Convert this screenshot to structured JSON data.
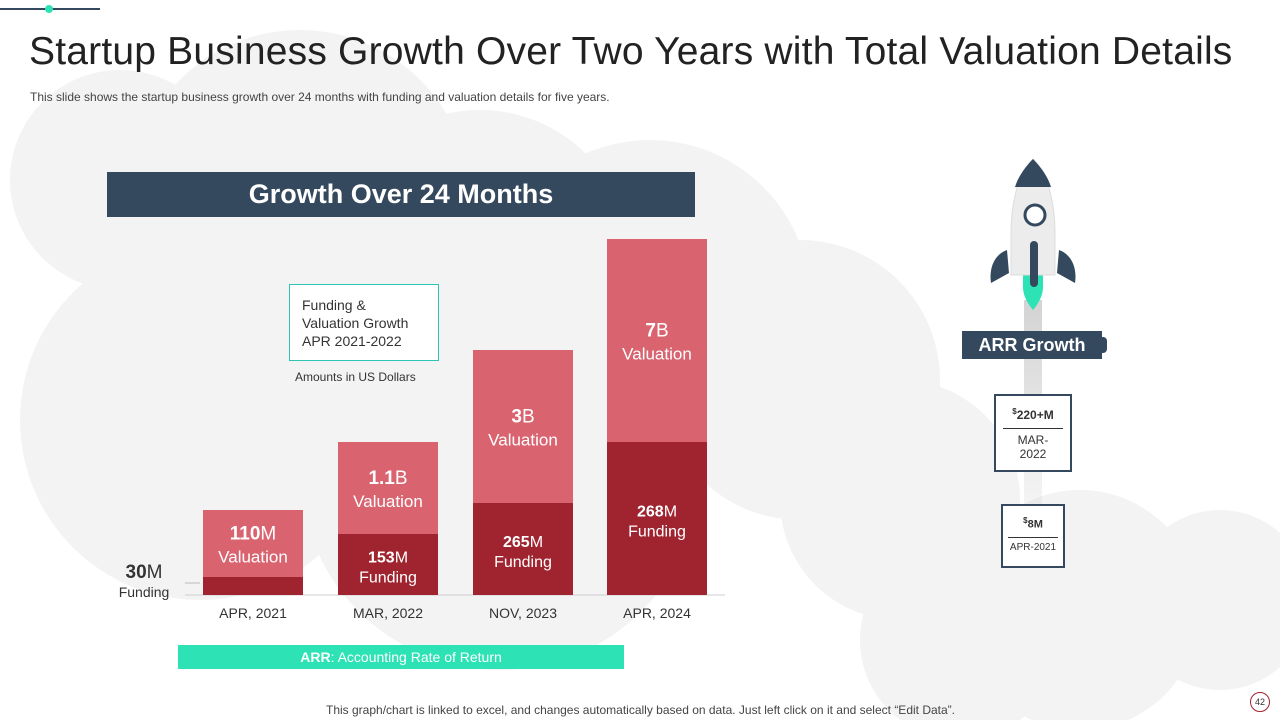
{
  "slide": {
    "title": "Startup Business Growth Over Two Years with Total Valuation Details",
    "subtitle": "This slide shows the startup business growth  over  24  months with funding and valuation  details for  five  years.",
    "banner": "Growth Over 24 Months",
    "legend_box_text": "Funding &\nValuation Growth\nAPR 2021-2022",
    "amounts_note": "Amounts in US Dollars",
    "arr_legend": {
      "label": "ARR",
      "text": ": Accounting Rate of Return"
    },
    "footnote": "This graph/chart is linked to excel,  and changes automatically based on data. Just left click on it and select “Edit Data”.",
    "page_number": "42"
  },
  "chart_data": {
    "type": "bar",
    "stacked": true,
    "categories": [
      "APR, 2021",
      "MAR, 2022",
      "NOV, 2023",
      "APR, 2024"
    ],
    "series": [
      {
        "name": "Funding",
        "values": [
          30,
          153,
          265,
          268
        ],
        "color": "#a0242f",
        "labels": [
          {
            "num": "30",
            "unit": "M",
            "word": "Funding"
          },
          {
            "num": "153",
            "unit": "M",
            "word": "Funding"
          },
          {
            "num": "265",
            "unit": "M",
            "word": "Funding"
          },
          {
            "num": "268",
            "unit": "M",
            "word": "Funding"
          }
        ]
      },
      {
        "name": "Valuation",
        "values": [
          110,
          1100,
          3000,
          7000
        ],
        "color": "#d96470",
        "labels": [
          {
            "num": "110",
            "unit": "M",
            "word": "Valuation"
          },
          {
            "num": "1.1",
            "unit": "B",
            "word": "Valuation"
          },
          {
            "num": "3",
            "unit": "B",
            "word": "Valuation"
          },
          {
            "num": "7",
            "unit": "B",
            "word": "Valuation"
          }
        ]
      }
    ],
    "units": "US Dollars",
    "title": "Growth Over 24 Months",
    "xlabel": "",
    "ylabel": "",
    "note": "Bar heights are illustrative (non-linear scale) as in source slide"
  },
  "arr": {
    "title": "ARR Growth",
    "items": [
      {
        "currency": "$",
        "value": "220+M",
        "date": "MAR-2022"
      },
      {
        "currency": "$",
        "value": "8M",
        "date": "APR-2021"
      }
    ]
  },
  "colors": {
    "navy": "#34495e",
    "accent": "#2de2b5",
    "funding": "#a0242f",
    "valuation": "#d96470"
  }
}
